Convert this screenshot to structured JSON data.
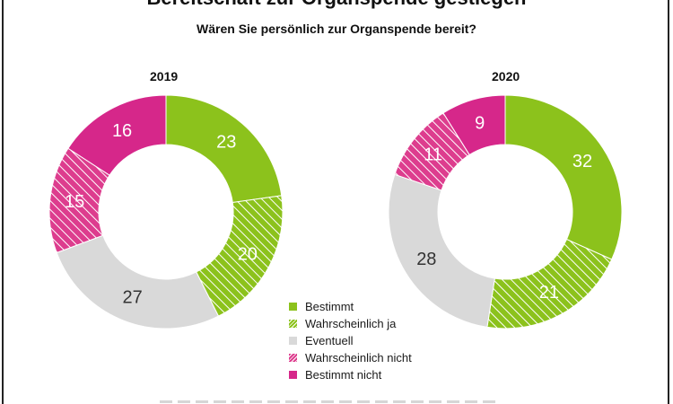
{
  "title": "Bereitschaft zur Organspende gestiegen",
  "subtitle": "Wären Sie persönlich zur Organspende bereit?",
  "legend": [
    {
      "label": "Bestimmt",
      "color": "#8cc21c",
      "pattern": "solid"
    },
    {
      "label": "Wahrscheinlich ja",
      "color": "#8cc21c",
      "pattern": "hatched"
    },
    {
      "label": "Eventuell",
      "color": "#d9d9d9",
      "pattern": "solid"
    },
    {
      "label": "Wahrscheinlich nicht",
      "color": "#dd3d8e",
      "pattern": "hatched"
    },
    {
      "label": "Bestimmt nicht",
      "color": "#d6278a",
      "pattern": "solid"
    }
  ],
  "chart_data": [
    {
      "type": "pie",
      "title": "2019",
      "categories": [
        "Bestimmt",
        "Wahrscheinlich ja",
        "Eventuell",
        "Wahrscheinlich nicht",
        "Bestimmt nicht"
      ],
      "values": [
        23,
        20,
        27,
        15,
        16
      ]
    },
    {
      "type": "pie",
      "title": "2020",
      "categories": [
        "Bestimmt",
        "Wahrscheinlich ja",
        "Eventuell",
        "Wahrscheinlich nicht",
        "Bestimmt nicht"
      ],
      "values": [
        32,
        21,
        28,
        11,
        9
      ]
    }
  ]
}
